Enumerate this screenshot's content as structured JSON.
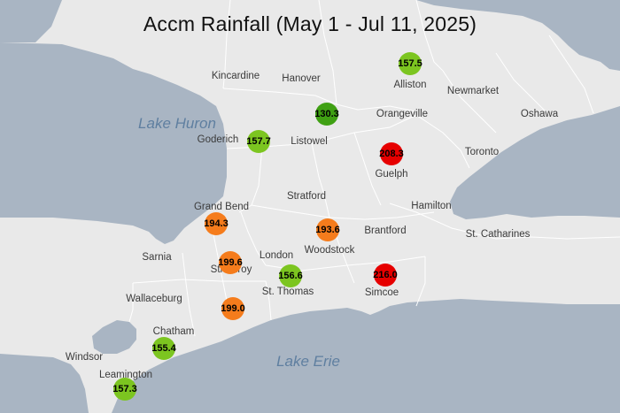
{
  "title": "Accm Rainfall (May 1 - Jul 11, 2025)",
  "colors": {
    "land": "#e9e9e9",
    "water": "#a9b5c3",
    "border": "#ffffff",
    "high": "#e60000",
    "elevated": "#f57c1c",
    "normal": "#7cc520",
    "moderate": "#3fa013"
  },
  "lakes": [
    {
      "id": "lake-huron",
      "name": "Lake Huron"
    },
    {
      "id": "lake-erie",
      "name": "Lake Erie"
    }
  ],
  "places": [
    {
      "id": "kincardine",
      "name": "Kincardine"
    },
    {
      "id": "hanover",
      "name": "Hanover"
    },
    {
      "id": "alliston",
      "name": "Alliston"
    },
    {
      "id": "newmarket",
      "name": "Newmarket"
    },
    {
      "id": "orangeville",
      "name": "Orangeville"
    },
    {
      "id": "oshawa",
      "name": "Oshawa"
    },
    {
      "id": "goderich",
      "name": "Goderich"
    },
    {
      "id": "listowel",
      "name": "Listowel"
    },
    {
      "id": "toronto",
      "name": "Toronto"
    },
    {
      "id": "guelph",
      "name": "Guelph"
    },
    {
      "id": "stratford",
      "name": "Stratford"
    },
    {
      "id": "grand-bend",
      "name": "Grand Bend"
    },
    {
      "id": "hamilton",
      "name": "Hamilton"
    },
    {
      "id": "brantford",
      "name": "Brantford"
    },
    {
      "id": "st-catharines",
      "name": "St. Catharines"
    },
    {
      "id": "sarnia",
      "name": "Sarnia"
    },
    {
      "id": "london",
      "name": "London"
    },
    {
      "id": "woodstock",
      "name": "Woodstock"
    },
    {
      "id": "strathroy",
      "name": "Strathroy"
    },
    {
      "id": "st-thomas",
      "name": "St. Thomas"
    },
    {
      "id": "simcoe",
      "name": "Simcoe"
    },
    {
      "id": "wallaceburg",
      "name": "Wallaceburg"
    },
    {
      "id": "chatham",
      "name": "Chatham"
    },
    {
      "id": "windsor",
      "name": "Windsor"
    },
    {
      "id": "leamington",
      "name": "Leamington"
    }
  ],
  "stations": [
    {
      "id": "alliston",
      "value": "157.5",
      "level": "normal"
    },
    {
      "id": "orangeville",
      "value": "130.3",
      "level": "moderate"
    },
    {
      "id": "goderich",
      "value": "157.7",
      "level": "normal"
    },
    {
      "id": "guelph",
      "value": "208.3",
      "level": "high"
    },
    {
      "id": "grand-bend",
      "value": "194.3",
      "level": "elevated"
    },
    {
      "id": "woodstock",
      "value": "193.6",
      "level": "elevated"
    },
    {
      "id": "strathroy",
      "value": "199.6",
      "level": "elevated"
    },
    {
      "id": "st-thomas",
      "value": "156.6",
      "level": "normal"
    },
    {
      "id": "simcoe",
      "value": "216.0",
      "level": "high"
    },
    {
      "id": "chatham-south",
      "value": "199.0",
      "level": "elevated"
    },
    {
      "id": "chatham",
      "value": "155.4",
      "level": "normal"
    },
    {
      "id": "leamington",
      "value": "157.3",
      "level": "normal"
    }
  ]
}
